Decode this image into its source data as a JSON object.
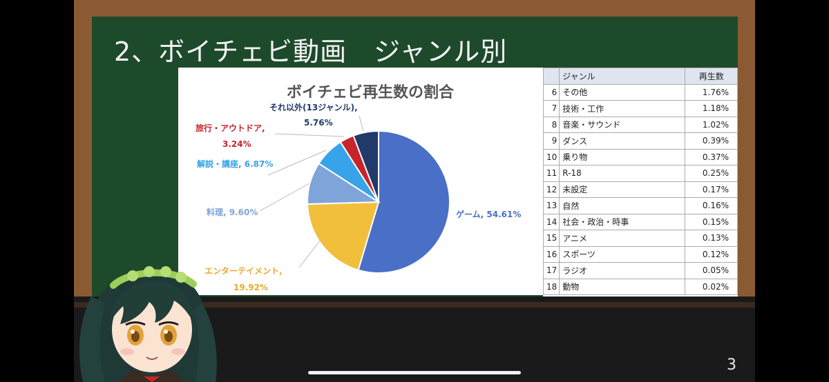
{
  "slide": {
    "title": "2、ボイチェビ動画　ジャンル別",
    "page_number": "3"
  },
  "chart_data": {
    "type": "pie",
    "title": "ボイチェビ再生数の割合",
    "slices": [
      {
        "label": "ゲーム",
        "value": 54.61,
        "color": "#4a6fc7",
        "label_text": "ゲーム, 54.61%"
      },
      {
        "label": "エンターテイメント",
        "value": 19.92,
        "color": "#f2bf3c",
        "label_text": "エンターテイメント, 19.92%"
      },
      {
        "label": "料理",
        "value": 9.6,
        "color": "#7ea4d9",
        "label_text": "料理, 9.60%"
      },
      {
        "label": "解説・講座",
        "value": 6.87,
        "color": "#37a3e8",
        "label_text": "解説・講座, 6.87%"
      },
      {
        "label": "旅行・アウトドア",
        "value": 3.24,
        "color": "#c8242b",
        "label_text": "旅行・アウトドア, 3.24%"
      },
      {
        "label": "それ以外(13ジャンル)",
        "value": 5.76,
        "color": "#213a6b",
        "label_text": "それ以外(13ジャンル), 5.76%"
      }
    ]
  },
  "labels": {
    "game_1": "ゲーム, 54.61%",
    "ent_1": "エンターテイメント,",
    "ent_2": "19.92%",
    "cook_1": "料理, 9.60%",
    "edu_1": "解説・講座, 6.87%",
    "travel_1": "旅行・アウトドア,",
    "travel_2": "3.24%",
    "other_1": "それ以外(13ジャンル),",
    "other_2": "5.76%"
  },
  "table": {
    "header_genre": "ジャンル",
    "header_pct": "再生数",
    "rows": [
      {
        "rank": "6",
        "genre": "その他",
        "pct": "1.76%"
      },
      {
        "rank": "7",
        "genre": "技術・工作",
        "pct": "1.18%"
      },
      {
        "rank": "8",
        "genre": "音楽・サウンド",
        "pct": "1.02%"
      },
      {
        "rank": "9",
        "genre": "ダンス",
        "pct": "0.39%"
      },
      {
        "rank": "10",
        "genre": "乗り物",
        "pct": "0.37%"
      },
      {
        "rank": "11",
        "genre": "R-18",
        "pct": "0.25%"
      },
      {
        "rank": "12",
        "genre": "未設定",
        "pct": "0.17%"
      },
      {
        "rank": "13",
        "genre": "自然",
        "pct": "0.16%"
      },
      {
        "rank": "14",
        "genre": "社会・政治・時事",
        "pct": "0.15%"
      },
      {
        "rank": "15",
        "genre": "アニメ",
        "pct": "0.13%"
      },
      {
        "rank": "16",
        "genre": "スポーツ",
        "pct": "0.12%"
      },
      {
        "rank": "17",
        "genre": "ラジオ",
        "pct": "0.05%"
      },
      {
        "rank": "18",
        "genre": "動物",
        "pct": "0.02%"
      }
    ]
  }
}
